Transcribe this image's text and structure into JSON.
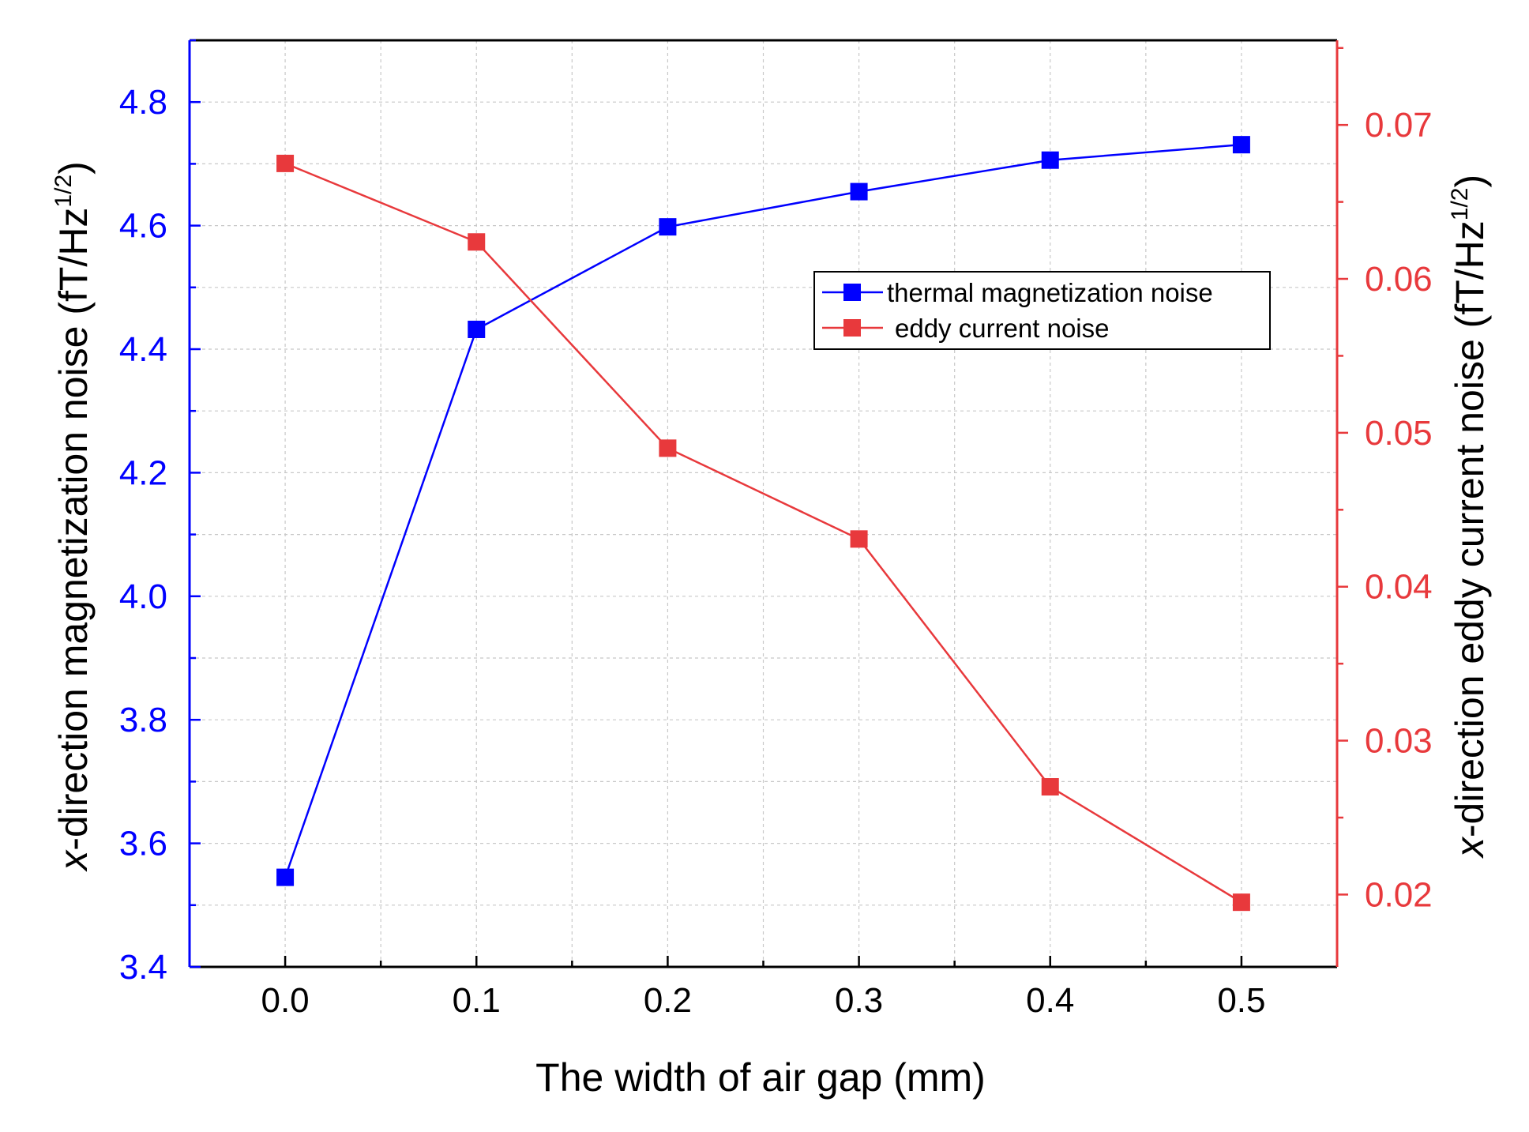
{
  "chart_data": {
    "type": "line",
    "x": [
      0.0,
      0.1,
      0.2,
      0.3,
      0.4,
      0.5
    ],
    "x_tick_labels": [
      "0.0",
      "0.1",
      "0.2",
      "0.3",
      "0.4",
      "0.5"
    ],
    "xlim": [
      -0.05,
      0.55
    ],
    "xlabel": "The width of air gap (mm)",
    "y_left": {
      "label_parts": {
        "italic": "x",
        "main": "-direction magnetization noise (fT/Hz",
        "sup": "1/2",
        "end": ")"
      },
      "lim": [
        3.4,
        4.9
      ],
      "ticks": [
        3.4,
        3.6,
        3.8,
        4.0,
        4.2,
        4.4,
        4.6,
        4.8
      ],
      "tick_labels": [
        "3.4",
        "3.6",
        "3.8",
        "4.0",
        "4.2",
        "4.4",
        "4.6",
        "4.8"
      ],
      "color": "#0000ff"
    },
    "y_right": {
      "label_parts": {
        "italic": "x",
        "main": "-direction eddy current noise (fT/Hz",
        "sup": "1/2",
        "end": ")"
      },
      "lim": [
        0.0153,
        0.0755
      ],
      "ticks": [
        0.02,
        0.03,
        0.04,
        0.05,
        0.06,
        0.07
      ],
      "tick_labels": [
        "0.02",
        "0.03",
        "0.04",
        "0.05",
        "0.06",
        "0.07"
      ],
      "color": "#e8393c"
    },
    "series": [
      {
        "name": "thermal magnetization noise",
        "axis": "left",
        "color": "#0000ff",
        "values": [
          3.545,
          4.432,
          4.598,
          4.655,
          4.706,
          4.731
        ]
      },
      {
        "name": "eddy current noise",
        "axis": "right",
        "color": "#e8393c",
        "values": [
          0.0675,
          0.0624,
          0.049,
          0.0431,
          0.027,
          0.0195
        ]
      }
    ],
    "grid": true,
    "legend_position": "upper-right"
  }
}
